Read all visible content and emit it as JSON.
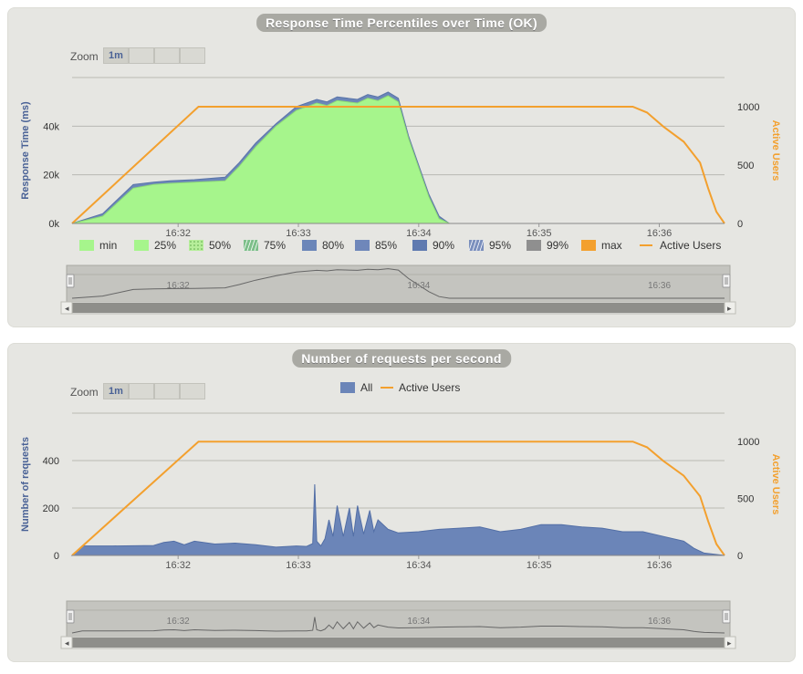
{
  "colors": {
    "min": "#a6f58c",
    "low": "#a6f58c",
    "p80": "#6b86b9",
    "p99": "#8f8f8f",
    "max": "#f3a02e",
    "users": "#f3a02e",
    "requests": "#6b85b8",
    "title_bg": "#a9a9a3"
  },
  "chart_data": [
    {
      "type": "area",
      "title": "Response Time Percentiles over Time (OK)",
      "ylabel": "Response Time (ms)",
      "y2label": "Active Users",
      "zoom_label": "Zoom",
      "zoom_buttons": [
        "1m",
        "",
        "",
        ""
      ],
      "x_ticks": [
        "16:32",
        "16:33",
        "16:34",
        "16:35",
        "16:36"
      ],
      "y_ticks": [
        "0k",
        "20k",
        "40k"
      ],
      "y2_ticks": [
        "0",
        "500",
        "1000"
      ],
      "ylim": [
        0,
        60000
      ],
      "y2lim": [
        0,
        1250
      ],
      "x_range_sec": [
        0,
        320
      ],
      "legend": [
        "min",
        "25%",
        "50%",
        "75%",
        "80%",
        "85%",
        "90%",
        "95%",
        "99%",
        "max",
        "Active Users"
      ],
      "series": [
        {
          "name": "max",
          "x": [
            0,
            15,
            30,
            40,
            48,
            60,
            75,
            82,
            90,
            100,
            110,
            120,
            125,
            130,
            140,
            145,
            150,
            155,
            160,
            165,
            170,
            175,
            180,
            185,
            190,
            195,
            200,
            205,
            260,
            300,
            320
          ],
          "values": [
            0,
            4000,
            16000,
            17000,
            17500,
            18000,
            19000,
            25000,
            33000,
            41000,
            48000,
            51000,
            50000,
            52000,
            51000,
            53000,
            52000,
            54000,
            51500,
            36000,
            24000,
            12000,
            3000,
            0,
            0,
            0,
            0,
            0,
            0,
            0,
            0
          ]
        },
        {
          "name": "min",
          "x": [
            0,
            15,
            30,
            40,
            48,
            60,
            75,
            82,
            90,
            100,
            110,
            120,
            125,
            130,
            140,
            145,
            150,
            155,
            160,
            165,
            170,
            175,
            180,
            185,
            190,
            195,
            200,
            205,
            260,
            300,
            320
          ],
          "values": [
            0,
            3000,
            14500,
            16000,
            16500,
            17000,
            17500,
            23500,
            31500,
            40000,
            46500,
            49500,
            48500,
            50500,
            49500,
            51500,
            50500,
            52500,
            50000,
            35000,
            23000,
            11000,
            2000,
            0,
            0,
            0,
            0,
            0,
            0,
            0,
            0
          ]
        },
        {
          "name": "Active Users",
          "axis": "y2",
          "x": [
            0,
            62,
            275,
            282,
            290,
            300,
            308,
            312,
            316,
            320
          ],
          "values": [
            0,
            1000,
            1000,
            950,
            830,
            700,
            520,
            300,
            100,
            0
          ]
        }
      ],
      "navigator_ticks": [
        "16:32",
        "16:34",
        "16:36"
      ]
    },
    {
      "type": "area",
      "title": "Number of requests per second",
      "ylabel": "Number of requests",
      "y2label": "Active Users",
      "zoom_label": "Zoom",
      "zoom_buttons": [
        "1m",
        "",
        "",
        ""
      ],
      "x_ticks": [
        "16:32",
        "16:33",
        "16:34",
        "16:35",
        "16:36"
      ],
      "y_ticks": [
        "0",
        "200",
        "400"
      ],
      "y2_ticks": [
        "0",
        "500",
        "1000"
      ],
      "ylim": [
        0,
        600
      ],
      "y2lim": [
        0,
        1250
      ],
      "legend": [
        "All",
        "Active Users"
      ],
      "series": [
        {
          "name": "All",
          "x": [
            0,
            5,
            20,
            40,
            45,
            50,
            55,
            60,
            70,
            80,
            90,
            100,
            110,
            115,
            118,
            119,
            120,
            122,
            124,
            126,
            128,
            130,
            133,
            136,
            138,
            140,
            143,
            146,
            148,
            150,
            155,
            160,
            170,
            180,
            190,
            200,
            210,
            220,
            230,
            240,
            250,
            260,
            270,
            280,
            290,
            300,
            305,
            310,
            320
          ],
          "values": [
            0,
            40,
            40,
            42,
            55,
            60,
            45,
            60,
            48,
            52,
            45,
            35,
            40,
            38,
            50,
            300,
            60,
            40,
            70,
            150,
            80,
            210,
            80,
            200,
            80,
            210,
            90,
            190,
            100,
            150,
            110,
            95,
            100,
            110,
            115,
            120,
            100,
            110,
            130,
            130,
            120,
            115,
            100,
            100,
            80,
            60,
            30,
            10,
            0
          ]
        },
        {
          "name": "Active Users",
          "axis": "y2",
          "x": [
            0,
            62,
            275,
            282,
            290,
            300,
            308,
            312,
            316,
            320
          ],
          "values": [
            0,
            1000,
            1000,
            950,
            830,
            700,
            520,
            300,
            100,
            0
          ]
        }
      ],
      "navigator_ticks": [
        "16:32",
        "16:34",
        "16:36"
      ]
    }
  ]
}
